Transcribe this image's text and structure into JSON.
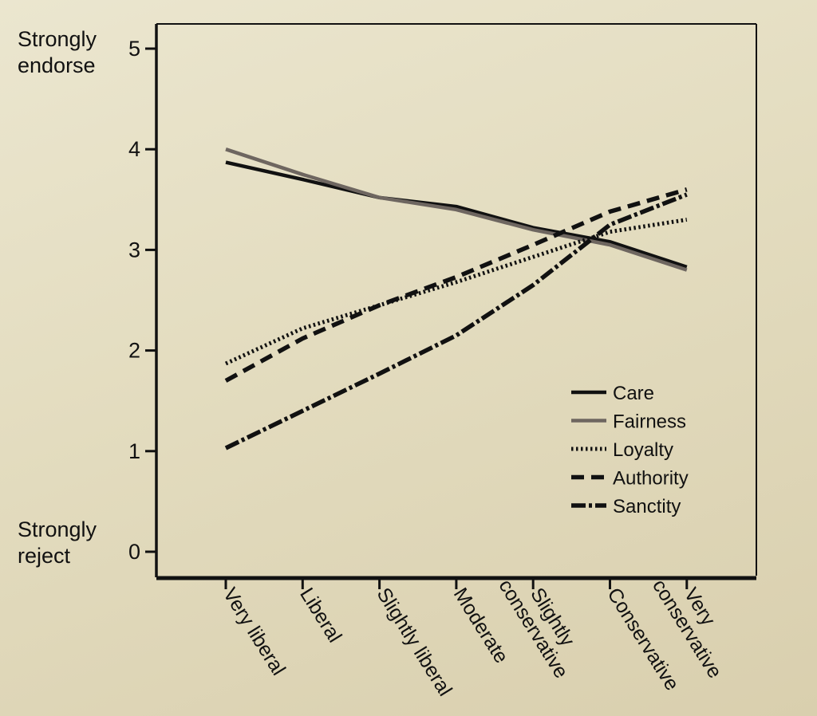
{
  "chart_data": {
    "type": "line",
    "title": "",
    "xlabel": "",
    "ylabel": "",
    "ylim": [
      0,
      5
    ],
    "yticks": [
      0,
      1,
      2,
      3,
      4,
      5
    ],
    "y_top_label": [
      "Strongly",
      "endorse"
    ],
    "y_bottom_label": [
      "Strongly",
      "reject"
    ],
    "categories": [
      [
        "Very liberal"
      ],
      [
        "Liberal"
      ],
      [
        "Slightly liberal"
      ],
      [
        "Moderate"
      ],
      [
        "Slightly",
        "conservative"
      ],
      [
        "Conservative"
      ],
      [
        "Very",
        "conservative"
      ]
    ],
    "legend_position": "bottom-right",
    "grid": false,
    "series": [
      {
        "name": "Care",
        "style": "solid",
        "color": "#111111",
        "values": [
          3.87,
          3.7,
          3.52,
          3.43,
          3.22,
          3.08,
          2.83
        ]
      },
      {
        "name": "Fairness",
        "style": "solid",
        "color": "#6e6660",
        "values": [
          4.0,
          3.75,
          3.52,
          3.4,
          3.2,
          3.05,
          2.8
        ]
      },
      {
        "name": "Loyalty",
        "style": "dotted",
        "color": "#111111",
        "values": [
          1.87,
          2.22,
          2.45,
          2.68,
          2.93,
          3.18,
          3.3
        ]
      },
      {
        "name": "Authority",
        "style": "dashed",
        "color": "#111111",
        "values": [
          1.7,
          2.12,
          2.45,
          2.73,
          3.05,
          3.38,
          3.6
        ]
      },
      {
        "name": "Sanctity",
        "style": "dashdot",
        "color": "#111111",
        "values": [
          1.03,
          1.4,
          1.77,
          2.15,
          2.65,
          3.25,
          3.55
        ]
      }
    ]
  }
}
